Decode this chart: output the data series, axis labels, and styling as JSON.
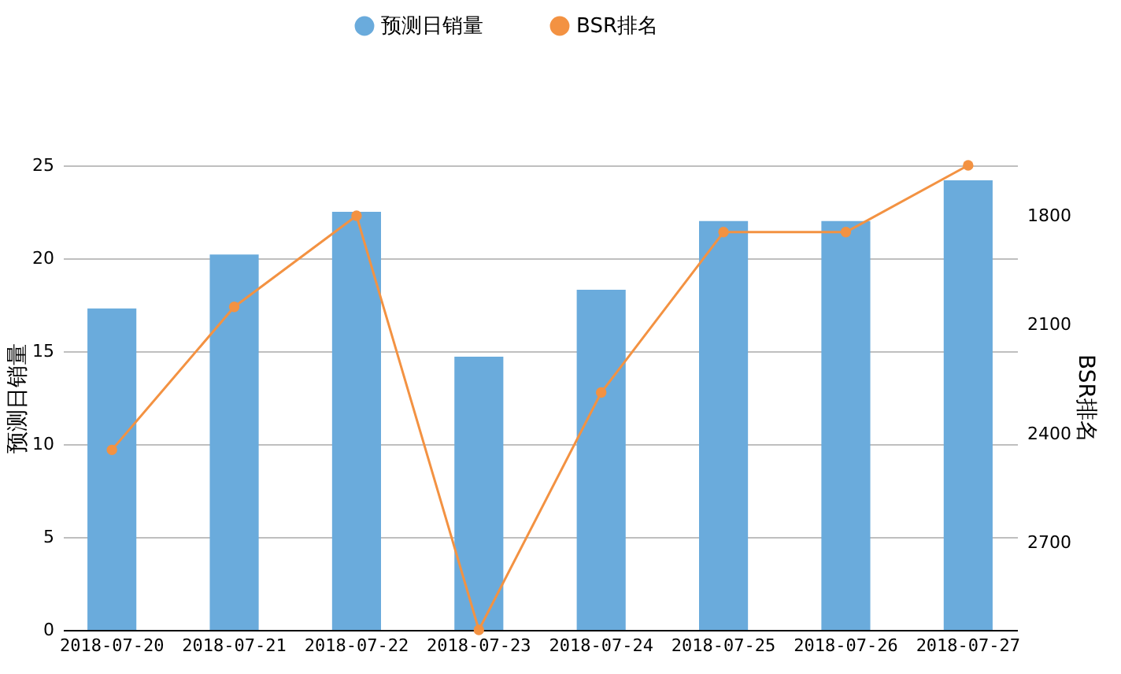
{
  "chart_data": {
    "type": "bar",
    "categories": [
      "2018-07-20",
      "2018-07-21",
      "2018-07-22",
      "2018-07-23",
      "2018-07-24",
      "2018-07-25",
      "2018-07-26",
      "2018-07-27"
    ],
    "ylabel": "预测日销量",
    "y2label": "BSR排名",
    "ylim": [
      0,
      25
    ],
    "yticks": [
      0,
      5,
      10,
      15,
      20,
      25
    ],
    "y2lim": [
      2941,
      1661
    ],
    "y2ticks": [
      {
        "value": 1800,
        "label": "1800"
      },
      {
        "value": 2100,
        "label": "2100"
      },
      {
        "value": 2400,
        "label": "2400"
      },
      {
        "value": 2700,
        "label": "2700"
      }
    ],
    "grid": "y",
    "legend": "top",
    "marker": "circle",
    "series": [
      {
        "name": "预测日销量",
        "color": "#6aabdc",
        "values": [
          17.3,
          20.2,
          22.5,
          14.7,
          18.3,
          22.0,
          22.0,
          24.2
        ]
      },
      {
        "name": "BSR排名",
        "type": "line",
        "axis": "y2",
        "color": "#f39242",
        "values": [
          2445,
          2051,
          1800,
          2941,
          2287,
          1845,
          1845,
          1661
        ]
      }
    ]
  }
}
